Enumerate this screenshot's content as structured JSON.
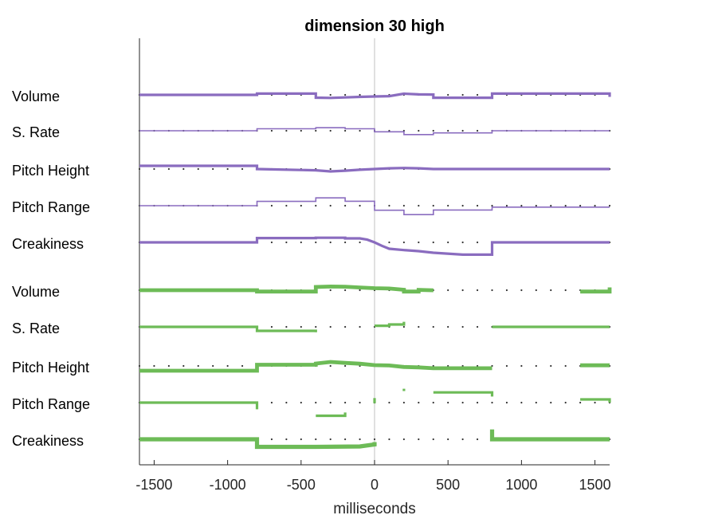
{
  "chart_data": {
    "type": "line",
    "title": "dimension 30 high",
    "xlabel": "milliseconds",
    "xlim": [
      -1600,
      1600
    ],
    "xticks": [
      -1500,
      -1000,
      -500,
      0,
      500,
      1000,
      1500
    ],
    "xticklabels": [
      "-1500",
      "-1000",
      "-500",
      "0",
      "500",
      "1000",
      "1500"
    ],
    "reference_line_x": 0,
    "dot_interval_ms": 100,
    "colors": {
      "purple": "#8a6cbf",
      "green": "#6dbb57",
      "axis": "#262626",
      "zero": "#cccccc",
      "dots": "#333333"
    },
    "rows": [
      {
        "label": "Volume",
        "group": "purple",
        "width": 3.2,
        "segments": [
          [
            [
              -1600,
              0
            ],
            [
              -800,
              0
            ],
            [
              -800,
              -1.6
            ],
            [
              -400,
              -1.6
            ],
            [
              -400,
              3.5
            ],
            [
              -300,
              3.8
            ],
            [
              -200,
              3.2
            ],
            [
              -100,
              2.5
            ],
            [
              0,
              2.0
            ],
            [
              100,
              1.6
            ],
            [
              200,
              -1.5
            ],
            [
              300,
              -0.6
            ],
            [
              400,
              -0.4
            ],
            [
              400,
              3.6
            ],
            [
              800,
              3.6
            ],
            [
              800,
              -1.6
            ],
            [
              1600,
              -1.6
            ],
            [
              1600,
              2.5
            ]
          ]
        ]
      },
      {
        "label": "S. Rate",
        "group": "purple",
        "width": 1.6,
        "segments": [
          [
            [
              -1600,
              0
            ],
            [
              -800,
              0
            ],
            [
              -800,
              -2.5
            ],
            [
              -400,
              -2.5
            ],
            [
              -400,
              -3.8
            ],
            [
              -200,
              -3.8
            ],
            [
              -200,
              -2.5
            ],
            [
              0,
              -2.5
            ],
            [
              0,
              1.3
            ],
            [
              200,
              1.3
            ],
            [
              200,
              4.8
            ],
            [
              400,
              4.8
            ],
            [
              400,
              2.7
            ],
            [
              800,
              2.7
            ],
            [
              800,
              0
            ],
            [
              1600,
              0
            ]
          ]
        ]
      },
      {
        "label": "Pitch Height",
        "group": "purple",
        "width": 3.2,
        "segments": [
          [
            [
              -1600,
              -4
            ],
            [
              -800,
              -4
            ],
            [
              -800,
              0
            ],
            [
              -400,
              1.6
            ],
            [
              -300,
              3.0
            ],
            [
              -200,
              2.1
            ],
            [
              -100,
              0.9
            ],
            [
              0,
              0
            ],
            [
              100,
              -0.9
            ],
            [
              200,
              -1.3
            ],
            [
              300,
              -0.9
            ],
            [
              400,
              0
            ],
            [
              800,
              0
            ],
            [
              1600,
              0
            ]
          ]
        ]
      },
      {
        "label": "Pitch Range",
        "group": "purple",
        "width": 1.6,
        "segments": [
          [
            [
              -1600,
              0
            ],
            [
              -800,
              0
            ],
            [
              -800,
              -5.4
            ],
            [
              -400,
              -5.4
            ],
            [
              -400,
              -9.8
            ],
            [
              -200,
              -9.8
            ],
            [
              -200,
              -5.6
            ],
            [
              0,
              -5.6
            ],
            [
              0,
              5.7
            ],
            [
              200,
              5.7
            ],
            [
              200,
              11.2
            ],
            [
              400,
              11.2
            ],
            [
              400,
              5.4
            ],
            [
              800,
              5.4
            ],
            [
              800,
              1.8
            ],
            [
              1600,
              1.8
            ]
          ]
        ]
      },
      {
        "label": "Creakiness",
        "group": "purple",
        "width": 3.2,
        "segments": [
          [
            [
              -1600,
              0
            ],
            [
              -800,
              0
            ],
            [
              -800,
              -5.4
            ],
            [
              -400,
              -5.4
            ],
            [
              -400,
              -5.8
            ],
            [
              -200,
              -5.8
            ],
            [
              -200,
              -5
            ],
            [
              -100,
              -5
            ],
            [
              -50,
              -3.4
            ],
            [
              0,
              0
            ],
            [
              50,
              4.3
            ],
            [
              100,
              8
            ],
            [
              200,
              9.7
            ],
            [
              300,
              11
            ],
            [
              400,
              13
            ],
            [
              600,
              15.4
            ],
            [
              800,
              15.4
            ],
            [
              800,
              0
            ],
            [
              1600,
              0
            ]
          ]
        ]
      },
      {
        "label": "Volume",
        "group": "green",
        "width": 4.8,
        "segments": [
          [
            [
              -1600,
              0
            ],
            [
              -800,
              0
            ],
            [
              -800,
              1.7
            ],
            [
              -400,
              1.7
            ],
            [
              -400,
              -4
            ],
            [
              -300,
              -4.6
            ],
            [
              -200,
              -4.4
            ],
            [
              -100,
              -3.4
            ],
            [
              0,
              -2.5
            ],
            [
              100,
              -2.1
            ],
            [
              200,
              -0.5
            ],
            [
              200,
              1.7
            ],
            [
              300,
              1.7
            ],
            [
              300,
              -0.4
            ],
            [
              400,
              0.1
            ]
          ],
          [
            [
              1400,
              1.7
            ],
            [
              1600,
              1.7
            ],
            [
              1600,
              -3.5
            ]
          ]
        ]
      },
      {
        "label": "S. Rate",
        "group": "green",
        "width": 3.2,
        "segments": [
          [
            [
              -1600,
              0
            ],
            [
              -800,
              0
            ],
            [
              -800,
              5
            ],
            [
              -400,
              5
            ],
            [
              -400,
              6.8
            ]
          ],
          [
            [
              0,
              -1.4
            ],
            [
              100,
              -1.4
            ],
            [
              100,
              -3
            ],
            [
              200,
              -3
            ],
            [
              200,
              -6.4
            ]
          ],
          [
            [
              800,
              0
            ],
            [
              1600,
              0
            ]
          ]
        ]
      },
      {
        "label": "Pitch Height",
        "group": "green",
        "width": 4.8,
        "segments": [
          [
            [
              -1600,
              6
            ],
            [
              -800,
              6
            ],
            [
              -800,
              -1.5
            ],
            [
              -400,
              -1.5
            ],
            [
              -400,
              -3
            ],
            [
              -300,
              -5
            ],
            [
              -200,
              -3.8
            ],
            [
              -100,
              -2.8
            ],
            [
              0,
              -1
            ],
            [
              100,
              -0.6
            ],
            [
              200,
              1.3
            ],
            [
              300,
              1.8
            ],
            [
              400,
              2.9
            ],
            [
              800,
              2.9
            ]
          ],
          [
            [
              1400,
              -0.8
            ],
            [
              1600,
              -0.8
            ]
          ]
        ]
      },
      {
        "label": "Pitch Range",
        "group": "green",
        "width": 3.2,
        "segments": [
          [
            [
              -1600,
              0
            ],
            [
              -800,
              0
            ],
            [
              -800,
              8.4
            ]
          ],
          [
            [
              -400,
              16.5
            ],
            [
              -200,
              16.5
            ],
            [
              -200,
              12.4
            ]
          ],
          [
            [
              0,
              0.8
            ],
            [
              0,
              -5.7
            ]
          ],
          [
            [
              200,
              -14.5
            ],
            [
              200,
              -17.4
            ]
          ],
          [
            [
              400,
              -12.8
            ],
            [
              800,
              -12.8
            ],
            [
              800,
              -7.6
            ]
          ],
          [
            [
              1400,
              -4
            ],
            [
              1600,
              -4
            ],
            [
              1600,
              0
            ]
          ]
        ]
      },
      {
        "label": "Creakiness",
        "group": "green",
        "width": 5.2,
        "segments": [
          [
            [
              -1600,
              0
            ],
            [
              -800,
              0
            ],
            [
              -800,
              9.5
            ],
            [
              -400,
              9.5
            ],
            [
              -100,
              9
            ],
            [
              0,
              6.5
            ],
            [
              0,
              3.5
            ]
          ],
          [
            [
              800,
              -12.4
            ],
            [
              800,
              0
            ],
            [
              1600,
              0
            ]
          ]
        ]
      }
    ]
  }
}
